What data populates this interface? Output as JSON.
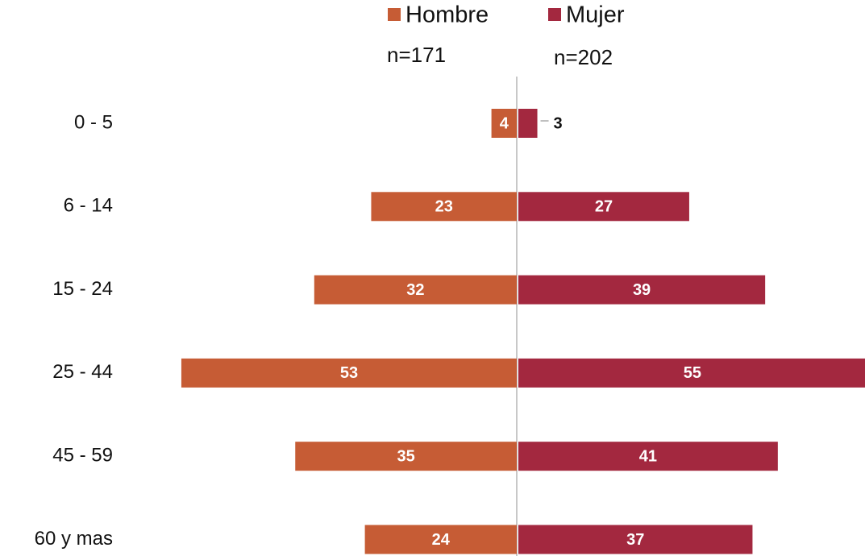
{
  "chart_data": {
    "type": "bar",
    "orientation": "horizontal",
    "layout": "mirrored",
    "categories": [
      "0 - 5",
      "6 - 14",
      "15 - 24",
      "25 - 44",
      "45 - 59",
      "60 y mas"
    ],
    "series": [
      {
        "name": "Hombre",
        "color": "#c65c35",
        "note": "n=171",
        "values": [
          4,
          23,
          32,
          53,
          35,
          24
        ]
      },
      {
        "name": "Mujer",
        "color": "#a3283f",
        "note": "n=202",
        "values": [
          3,
          27,
          39,
          55,
          41,
          37
        ]
      }
    ],
    "legend": "top"
  }
}
